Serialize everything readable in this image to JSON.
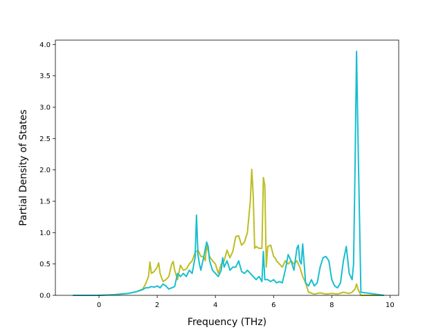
{
  "chart_data": {
    "type": "line",
    "title": "",
    "xlabel": "Frequency (THz)",
    "ylabel": "Partial Density of States",
    "xlim": [
      -1.5,
      10.3
    ],
    "ylim": [
      0.0,
      4.07
    ],
    "xticks": [
      0,
      2,
      4,
      6,
      8,
      10
    ],
    "yticks": [
      0.0,
      0.5,
      1.0,
      1.5,
      2.0,
      2.5,
      3.0,
      3.5,
      4.0
    ],
    "ytick_labels": [
      "0.0",
      "0.5",
      "1.0",
      "1.5",
      "2.0",
      "2.5",
      "3.0",
      "3.5",
      "4.0"
    ],
    "grid": false,
    "legend": "none",
    "series": [
      {
        "color": "#bcbd22",
        "x": [
          -0.9,
          0.0,
          0.5,
          1.0,
          1.3,
          1.5,
          1.6,
          1.7,
          1.75,
          1.8,
          1.9,
          2.0,
          2.05,
          2.1,
          2.2,
          2.3,
          2.4,
          2.5,
          2.55,
          2.6,
          2.7,
          2.8,
          2.9,
          3.0,
          3.1,
          3.2,
          3.3,
          3.4,
          3.5,
          3.6,
          3.65,
          3.7,
          3.8,
          3.9,
          4.0,
          4.1,
          4.2,
          4.3,
          4.4,
          4.5,
          4.6,
          4.7,
          4.8,
          4.9,
          5.0,
          5.1,
          5.2,
          5.25,
          5.3,
          5.35,
          5.4,
          5.5,
          5.6,
          5.65,
          5.7,
          5.75,
          5.8,
          5.9,
          6.0,
          6.05,
          6.1,
          6.2,
          6.3,
          6.4,
          6.5,
          6.6,
          6.7,
          6.8,
          6.9,
          7.0,
          7.1,
          7.2,
          7.4,
          7.6,
          7.8,
          8.0,
          8.2,
          8.4,
          8.6,
          8.7,
          8.8,
          8.85,
          8.9,
          9.0,
          9.8
        ],
        "y": [
          0.0,
          0.0,
          0.01,
          0.03,
          0.06,
          0.1,
          0.18,
          0.3,
          0.53,
          0.35,
          0.38,
          0.45,
          0.52,
          0.35,
          0.22,
          0.25,
          0.3,
          0.5,
          0.54,
          0.4,
          0.25,
          0.48,
          0.4,
          0.42,
          0.5,
          0.55,
          0.68,
          0.72,
          0.62,
          0.62,
          0.55,
          0.8,
          0.62,
          0.55,
          0.5,
          0.35,
          0.5,
          0.55,
          0.72,
          0.6,
          0.7,
          0.94,
          0.95,
          0.8,
          0.85,
          1.0,
          1.5,
          2.01,
          1.6,
          0.75,
          0.78,
          0.75,
          0.75,
          1.88,
          1.75,
          0.45,
          0.78,
          0.8,
          0.62,
          0.6,
          0.55,
          0.5,
          0.45,
          0.55,
          0.5,
          0.55,
          0.5,
          0.55,
          0.45,
          0.3,
          0.2,
          0.05,
          0.02,
          0.04,
          0.02,
          0.03,
          0.02,
          0.05,
          0.03,
          0.05,
          0.1,
          0.18,
          0.1,
          0.0,
          0.0
        ]
      },
      {
        "color": "#17becf",
        "x": [
          -0.9,
          0.0,
          0.5,
          1.0,
          1.3,
          1.5,
          1.6,
          1.7,
          1.8,
          1.9,
          2.0,
          2.1,
          2.2,
          2.3,
          2.4,
          2.5,
          2.6,
          2.7,
          2.8,
          2.9,
          3.0,
          3.1,
          3.2,
          3.3,
          3.35,
          3.4,
          3.45,
          3.5,
          3.6,
          3.7,
          3.75,
          3.8,
          3.9,
          4.0,
          4.1,
          4.2,
          4.25,
          4.3,
          4.4,
          4.5,
          4.6,
          4.7,
          4.8,
          4.9,
          5.0,
          5.1,
          5.2,
          5.3,
          5.4,
          5.5,
          5.6,
          5.65,
          5.7,
          5.8,
          5.9,
          6.0,
          6.1,
          6.2,
          6.3,
          6.4,
          6.5,
          6.6,
          6.7,
          6.8,
          6.85,
          6.9,
          6.95,
          7.0,
          7.1,
          7.2,
          7.3,
          7.4,
          7.5,
          7.6,
          7.7,
          7.8,
          7.9,
          8.0,
          8.1,
          8.2,
          8.3,
          8.4,
          8.5,
          8.6,
          8.7,
          8.75,
          8.8,
          8.85,
          8.9,
          9.0,
          9.8
        ],
        "y": [
          0.0,
          0.0,
          0.01,
          0.03,
          0.06,
          0.09,
          0.12,
          0.12,
          0.14,
          0.13,
          0.15,
          0.12,
          0.18,
          0.15,
          0.1,
          0.12,
          0.14,
          0.35,
          0.3,
          0.35,
          0.3,
          0.4,
          0.35,
          0.6,
          1.28,
          0.65,
          0.5,
          0.4,
          0.62,
          0.85,
          0.78,
          0.55,
          0.4,
          0.35,
          0.3,
          0.4,
          0.6,
          0.45,
          0.55,
          0.4,
          0.45,
          0.45,
          0.55,
          0.38,
          0.35,
          0.4,
          0.35,
          0.3,
          0.25,
          0.3,
          0.22,
          0.7,
          0.25,
          0.25,
          0.22,
          0.25,
          0.2,
          0.22,
          0.2,
          0.4,
          0.65,
          0.55,
          0.4,
          0.75,
          0.8,
          0.55,
          0.5,
          0.82,
          0.2,
          0.15,
          0.25,
          0.15,
          0.2,
          0.45,
          0.6,
          0.62,
          0.55,
          0.25,
          0.15,
          0.12,
          0.2,
          0.55,
          0.78,
          0.35,
          0.25,
          0.5,
          2.0,
          3.89,
          2.5,
          0.05,
          0.0
        ]
      }
    ]
  }
}
